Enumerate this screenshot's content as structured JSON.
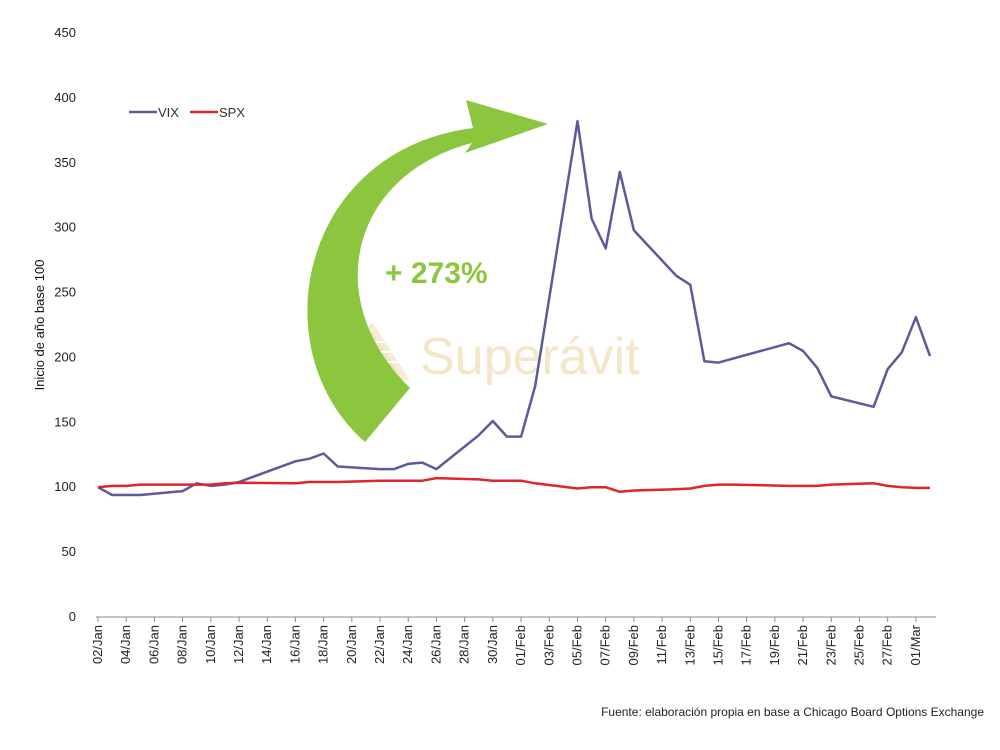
{
  "chart_data": {
    "type": "line",
    "ylabel": "Inicio de año base 100",
    "xlabel": "",
    "ylim": [
      0,
      450
    ],
    "yticks": [
      0,
      50,
      100,
      150,
      200,
      250,
      300,
      350,
      400,
      450
    ],
    "grid": false,
    "legend_position": "top-left",
    "x": [
      "02/Jan",
      "03/Jan",
      "04/Jan",
      "05/Jan",
      "06/Jan",
      "07/Jan",
      "08/Jan",
      "09/Jan",
      "10/Jan",
      "11/Jan",
      "12/Jan",
      "13/Jan",
      "14/Jan",
      "15/Jan",
      "16/Jan",
      "17/Jan",
      "18/Jan",
      "19/Jan",
      "20/Jan",
      "21/Jan",
      "22/Jan",
      "23/Jan",
      "24/Jan",
      "25/Jan",
      "26/Jan",
      "27/Jan",
      "28/Jan",
      "29/Jan",
      "30/Jan",
      "31/Jan",
      "01/Feb",
      "02/Feb",
      "03/Feb",
      "04/Feb",
      "05/Feb",
      "06/Feb",
      "07/Feb",
      "08/Feb",
      "09/Feb",
      "10/Feb",
      "11/Feb",
      "12/Feb",
      "13/Feb",
      "14/Feb",
      "15/Feb",
      "16/Feb",
      "17/Feb",
      "18/Feb",
      "19/Feb",
      "20/Feb",
      "21/Feb",
      "22/Feb",
      "23/Feb",
      "24/Feb",
      "25/Feb",
      "26/Feb",
      "27/Feb",
      "28/Feb",
      "01/Mar",
      "02/Mar"
    ],
    "x_tick_labels": [
      "02/Jan",
      "04/Jan",
      "06/Jan",
      "08/Jan",
      "10/Jan",
      "12/Jan",
      "14/Jan",
      "16/Jan",
      "18/Jan",
      "20/Jan",
      "22/Jan",
      "24/Jan",
      "26/Jan",
      "28/Jan",
      "30/Jan",
      "01/Feb",
      "03/Feb",
      "05/Feb",
      "07/Feb",
      "09/Feb",
      "11/Feb",
      "13/Feb",
      "15/Feb",
      "17/Feb",
      "19/Feb",
      "21/Feb",
      "23/Feb",
      "25/Feb",
      "27/Feb",
      "01/Mar"
    ],
    "series": [
      {
        "name": "VIX",
        "color": "#5b5b9b",
        "points": [
          [
            "02/Jan",
            100
          ],
          [
            "03/Jan",
            94
          ],
          [
            "05/Jan",
            94
          ],
          [
            "08/Jan",
            97
          ],
          [
            "09/Jan",
            103
          ],
          [
            "10/Jan",
            101
          ],
          [
            "11/Jan",
            102
          ],
          [
            "12/Jan",
            104
          ],
          [
            "16/Jan",
            120
          ],
          [
            "17/Jan",
            122
          ],
          [
            "18/Jan",
            126
          ],
          [
            "19/Jan",
            116
          ],
          [
            "22/Jan",
            114
          ],
          [
            "23/Jan",
            114
          ],
          [
            "24/Jan",
            118
          ],
          [
            "25/Jan",
            119
          ],
          [
            "26/Jan",
            114
          ],
          [
            "29/Jan",
            140
          ],
          [
            "30/Jan",
            151
          ],
          [
            "31/Jan",
            139
          ],
          [
            "01/Feb",
            139
          ],
          [
            "02/Feb",
            178
          ],
          [
            "05/Feb",
            382
          ],
          [
            "06/Feb",
            307
          ],
          [
            "07/Feb",
            284
          ],
          [
            "08/Feb",
            343
          ],
          [
            "09/Feb",
            298
          ],
          [
            "12/Feb",
            263
          ],
          [
            "13/Feb",
            256
          ],
          [
            "14/Feb",
            197
          ],
          [
            "15/Feb",
            196
          ],
          [
            "20/Feb",
            211
          ],
          [
            "21/Feb",
            205
          ],
          [
            "22/Feb",
            192
          ],
          [
            "23/Feb",
            170
          ],
          [
            "26/Feb",
            162
          ],
          [
            "27/Feb",
            191
          ],
          [
            "28/Feb",
            204
          ],
          [
            "01/Mar",
            231
          ],
          [
            "02/Mar",
            201
          ]
        ]
      },
      {
        "name": "SPX",
        "color": "#e0252b",
        "points": [
          [
            "02/Jan",
            100
          ],
          [
            "03/Jan",
            101
          ],
          [
            "04/Jan",
            101
          ],
          [
            "05/Jan",
            102
          ],
          [
            "08/Jan",
            102
          ],
          [
            "09/Jan",
            102
          ],
          [
            "10/Jan",
            102
          ],
          [
            "11/Jan",
            103
          ],
          [
            "12/Jan",
            103.5
          ],
          [
            "16/Jan",
            103
          ],
          [
            "17/Jan",
            104
          ],
          [
            "18/Jan",
            104
          ],
          [
            "19/Jan",
            104
          ],
          [
            "22/Jan",
            105
          ],
          [
            "23/Jan",
            105
          ],
          [
            "24/Jan",
            105
          ],
          [
            "25/Jan",
            105
          ],
          [
            "26/Jan",
            107
          ],
          [
            "29/Jan",
            106
          ],
          [
            "30/Jan",
            105
          ],
          [
            "31/Jan",
            105
          ],
          [
            "01/Feb",
            105
          ],
          [
            "02/Feb",
            103
          ],
          [
            "05/Feb",
            99
          ],
          [
            "06/Feb",
            100
          ],
          [
            "07/Feb",
            100
          ],
          [
            "08/Feb",
            96.5
          ],
          [
            "09/Feb",
            97.5
          ],
          [
            "12/Feb",
            98.5
          ],
          [
            "13/Feb",
            99
          ],
          [
            "14/Feb",
            101
          ],
          [
            "15/Feb",
            102
          ],
          [
            "16/Feb",
            102
          ],
          [
            "20/Feb",
            101
          ],
          [
            "21/Feb",
            101
          ],
          [
            "22/Feb",
            101
          ],
          [
            "23/Feb",
            102
          ],
          [
            "26/Feb",
            103
          ],
          [
            "27/Feb",
            101
          ],
          [
            "28/Feb",
            100
          ],
          [
            "01/Mar",
            99.5
          ],
          [
            "02/Mar",
            99.5
          ]
        ]
      }
    ],
    "annotation": {
      "text": "+ 273%",
      "color": "#8cc63f"
    }
  },
  "watermark": {
    "text": "Superávit",
    "color": "#f3e6c9"
  },
  "source": "Fuente: elaboración propia en base a Chicago Board Options Exchange"
}
